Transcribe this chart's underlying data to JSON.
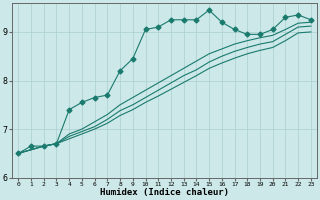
{
  "xlabel": "Humidex (Indice chaleur)",
  "ylabel": "",
  "bg_color": "#cce8e8",
  "line_color": "#1a7a6e",
  "grid_color": "#aacfcf",
  "xlim": [
    -0.5,
    23.5
  ],
  "ylim": [
    6.0,
    9.6
  ],
  "yticks": [
    6,
    7,
    8,
    9
  ],
  "xticks": [
    0,
    1,
    2,
    3,
    4,
    5,
    6,
    7,
    8,
    9,
    10,
    11,
    12,
    13,
    14,
    15,
    16,
    17,
    18,
    19,
    20,
    21,
    22,
    23
  ],
  "line1_x": [
    0,
    1,
    2,
    3,
    4,
    5,
    6,
    7,
    8,
    9,
    10,
    11,
    12,
    13,
    14,
    15,
    16,
    17,
    18,
    19,
    20,
    21,
    22,
    23
  ],
  "line1_y": [
    6.5,
    6.65,
    6.65,
    6.7,
    7.4,
    7.55,
    7.65,
    7.7,
    8.2,
    8.45,
    9.05,
    9.1,
    9.25,
    9.25,
    9.25,
    9.45,
    9.2,
    9.05,
    8.95,
    8.95,
    9.05,
    9.3,
    9.35,
    9.25
  ],
  "line2_x": [
    0,
    2,
    3,
    4,
    5,
    6,
    7,
    8,
    9,
    10,
    11,
    12,
    13,
    14,
    15,
    16,
    17,
    18,
    19,
    20,
    21,
    22,
    23
  ],
  "line2_y": [
    6.5,
    6.65,
    6.7,
    6.9,
    7.0,
    7.15,
    7.3,
    7.5,
    7.65,
    7.8,
    7.95,
    8.1,
    8.25,
    8.4,
    8.55,
    8.65,
    8.75,
    8.82,
    8.88,
    8.93,
    9.05,
    9.18,
    9.2
  ],
  "line3_x": [
    0,
    2,
    3,
    4,
    5,
    6,
    7,
    8,
    9,
    10,
    11,
    12,
    13,
    14,
    15,
    16,
    17,
    18,
    19,
    20,
    21,
    22,
    23
  ],
  "line3_y": [
    6.5,
    6.65,
    6.7,
    6.85,
    6.95,
    7.05,
    7.2,
    7.38,
    7.5,
    7.65,
    7.8,
    7.95,
    8.1,
    8.22,
    8.38,
    8.5,
    8.6,
    8.68,
    8.75,
    8.8,
    8.95,
    9.1,
    9.12
  ],
  "line4_x": [
    0,
    2,
    3,
    4,
    5,
    6,
    7,
    8,
    9,
    10,
    11,
    12,
    13,
    14,
    15,
    16,
    17,
    18,
    19,
    20,
    21,
    22,
    23
  ],
  "line4_y": [
    6.5,
    6.65,
    6.7,
    6.8,
    6.9,
    7.0,
    7.12,
    7.28,
    7.4,
    7.55,
    7.68,
    7.82,
    7.96,
    8.1,
    8.25,
    8.36,
    8.46,
    8.55,
    8.62,
    8.68,
    8.82,
    8.98,
    9.0
  ],
  "marker_style": "D",
  "marker_size": 2.5,
  "line_width": 0.8
}
